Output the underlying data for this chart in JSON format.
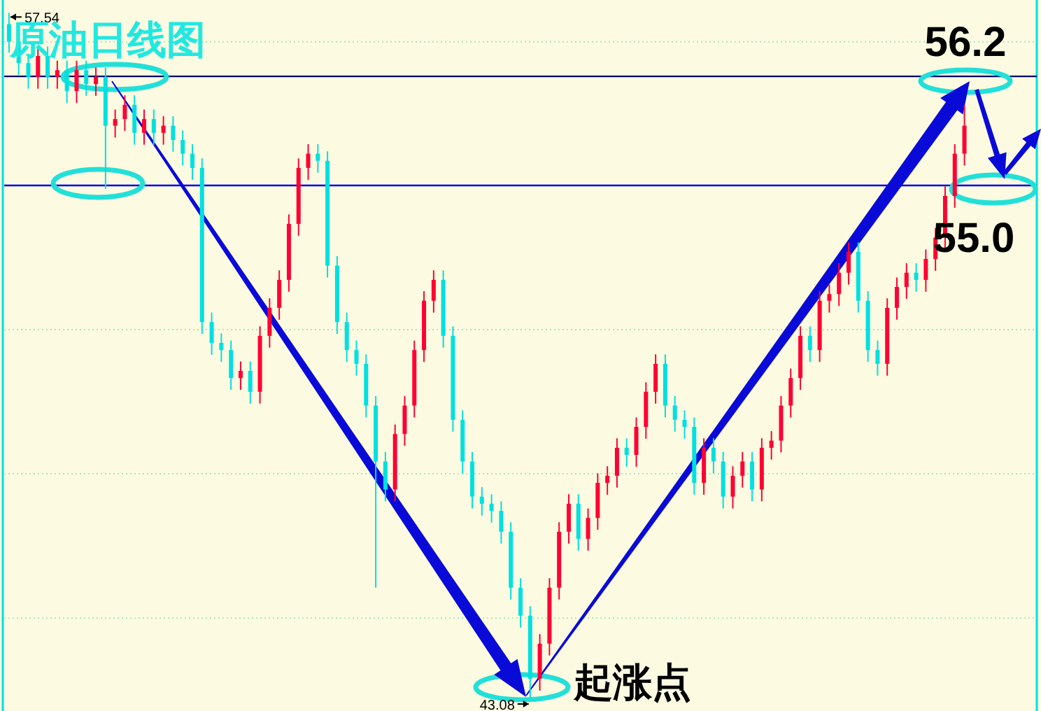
{
  "chart_data": {
    "type": "candlestick",
    "title": "原油日线图",
    "categories": [
      null,
      null,
      null,
      null,
      null,
      null,
      null,
      null,
      null,
      null,
      null,
      null,
      null,
      null,
      null,
      null,
      null,
      null,
      null,
      null,
      null,
      null,
      null,
      null,
      null,
      null,
      null,
      null,
      null,
      null,
      null,
      null,
      null,
      null,
      null,
      null,
      null,
      null,
      null,
      null,
      null,
      null,
      null,
      null,
      null,
      null,
      null,
      null,
      null,
      null,
      null,
      null,
      null,
      null,
      null,
      null,
      null,
      null,
      null,
      null,
      null,
      null,
      null,
      null,
      null,
      null,
      null,
      null,
      null,
      null,
      null,
      null,
      null,
      null,
      null,
      null,
      null,
      null,
      null,
      null,
      null,
      null,
      null,
      null,
      null,
      null,
      null,
      null,
      null,
      null,
      null,
      null,
      null,
      null,
      null,
      null,
      null,
      null,
      null,
      null
    ],
    "ohlc": [
      [
        57.3,
        57.54,
        56.7,
        56.93
      ],
      [
        56.93,
        57.13,
        56.23,
        56.48
      ],
      [
        56.48,
        56.68,
        55.94,
        56.19
      ],
      [
        56.19,
        56.83,
        55.94,
        56.63
      ],
      [
        56.63,
        56.83,
        55.94,
        56.19
      ],
      [
        56.19,
        56.53,
        55.94,
        56.33
      ],
      [
        56.33,
        56.53,
        55.64,
        55.89
      ],
      [
        55.89,
        56.53,
        55.64,
        56.33
      ],
      [
        56.33,
        56.53,
        55.79,
        56.04
      ],
      [
        56.04,
        56.39,
        55.79,
        56.19
      ],
      [
        56.19,
        56.39,
        53.83,
        55.16
      ],
      [
        55.16,
        55.5,
        54.91,
        55.3
      ],
      [
        55.3,
        55.8,
        55.05,
        55.6
      ],
      [
        55.6,
        55.8,
        54.76,
        55.01
      ],
      [
        55.01,
        55.5,
        54.76,
        55.3
      ],
      [
        55.3,
        55.5,
        54.76,
        55.01
      ],
      [
        55.01,
        55.36,
        54.76,
        55.16
      ],
      [
        55.16,
        55.36,
        54.61,
        54.86
      ],
      [
        54.86,
        55.06,
        54.32,
        54.57
      ],
      [
        54.57,
        54.77,
        54.02,
        54.27
      ],
      [
        54.27,
        54.47,
        50.77,
        51.02
      ],
      [
        51.02,
        51.22,
        50.33,
        50.58
      ],
      [
        50.58,
        50.78,
        50.18,
        50.43
      ],
      [
        50.43,
        50.63,
        49.59,
        49.84
      ],
      [
        49.84,
        50.19,
        49.59,
        49.99
      ],
      [
        49.99,
        50.19,
        49.3,
        49.55
      ],
      [
        49.55,
        50.93,
        49.3,
        50.73
      ],
      [
        50.73,
        51.52,
        50.48,
        51.32
      ],
      [
        51.32,
        52.11,
        51.07,
        51.91
      ],
      [
        51.91,
        53.29,
        51.66,
        53.09
      ],
      [
        53.09,
        54.47,
        52.84,
        54.27
      ],
      [
        54.27,
        54.77,
        54.02,
        54.57
      ],
      [
        54.57,
        54.77,
        54.17,
        54.42
      ],
      [
        54.42,
        54.62,
        51.96,
        52.21
      ],
      [
        52.21,
        52.41,
        50.77,
        51.02
      ],
      [
        51.02,
        51.22,
        50.18,
        50.43
      ],
      [
        50.43,
        50.63,
        49.89,
        50.14
      ],
      [
        50.14,
        50.34,
        49.01,
        49.26
      ],
      [
        49.26,
        49.46,
        45.42,
        48.08
      ],
      [
        48.08,
        48.28,
        47.24,
        47.49
      ],
      [
        47.49,
        48.86,
        47.24,
        48.66
      ],
      [
        48.66,
        49.46,
        48.41,
        49.26
      ],
      [
        49.26,
        50.63,
        49.01,
        50.43
      ],
      [
        50.43,
        51.67,
        50.18,
        51.47
      ],
      [
        51.47,
        52.11,
        51.22,
        51.91
      ],
      [
        51.91,
        52.11,
        50.48,
        50.73
      ],
      [
        50.73,
        50.93,
        48.71,
        48.96
      ],
      [
        48.96,
        49.16,
        47.83,
        48.08
      ],
      [
        48.08,
        48.28,
        47.09,
        47.34
      ],
      [
        47.34,
        47.54,
        46.94,
        47.19
      ],
      [
        47.19,
        47.39,
        46.79,
        47.04
      ],
      [
        47.04,
        47.24,
        46.35,
        46.6
      ],
      [
        46.6,
        46.8,
        45.17,
        45.42
      ],
      [
        45.42,
        45.62,
        44.58,
        44.83
      ],
      [
        44.83,
        45.03,
        43.08,
        43.5
      ],
      [
        43.5,
        44.44,
        43.25,
        44.24
      ],
      [
        44.24,
        45.62,
        43.99,
        45.42
      ],
      [
        45.42,
        46.8,
        45.17,
        46.6
      ],
      [
        46.6,
        47.39,
        46.35,
        47.19
      ],
      [
        47.19,
        47.39,
        46.2,
        46.45
      ],
      [
        46.45,
        47.09,
        46.2,
        46.89
      ],
      [
        46.89,
        47.83,
        46.64,
        47.63
      ],
      [
        47.63,
        47.98,
        47.38,
        47.78
      ],
      [
        47.78,
        48.57,
        47.53,
        48.37
      ],
      [
        48.37,
        48.57,
        47.97,
        48.22
      ],
      [
        48.22,
        49.01,
        47.97,
        48.81
      ],
      [
        48.81,
        49.75,
        48.56,
        49.55
      ],
      [
        49.55,
        50.34,
        49.3,
        50.14
      ],
      [
        50.14,
        50.34,
        49.01,
        49.26
      ],
      [
        49.26,
        49.46,
        48.71,
        48.96
      ],
      [
        48.96,
        49.16,
        48.56,
        48.81
      ],
      [
        48.81,
        49.01,
        47.38,
        47.63
      ],
      [
        47.63,
        48.57,
        47.38,
        48.37
      ],
      [
        48.37,
        48.57,
        47.83,
        48.08
      ],
      [
        48.08,
        48.28,
        47.09,
        47.34
      ],
      [
        47.34,
        47.98,
        47.09,
        47.78
      ],
      [
        47.78,
        48.28,
        47.53,
        48.08
      ],
      [
        48.08,
        48.28,
        47.24,
        47.49
      ],
      [
        47.49,
        48.57,
        47.24,
        48.37
      ],
      [
        48.37,
        48.72,
        48.12,
        48.52
      ],
      [
        48.52,
        49.46,
        48.27,
        49.26
      ],
      [
        49.26,
        50.04,
        49.01,
        49.84
      ],
      [
        49.84,
        50.93,
        49.59,
        50.73
      ],
      [
        50.73,
        50.93,
        50.18,
        50.43
      ],
      [
        50.43,
        51.67,
        50.18,
        51.47
      ],
      [
        51.47,
        51.81,
        51.22,
        51.61
      ],
      [
        51.61,
        52.26,
        51.36,
        52.06
      ],
      [
        52.06,
        52.7,
        51.81,
        52.5
      ],
      [
        52.5,
        52.7,
        51.22,
        51.47
      ],
      [
        51.47,
        51.67,
        50.18,
        50.43
      ],
      [
        50.43,
        50.63,
        49.89,
        50.14
      ],
      [
        50.14,
        51.52,
        49.89,
        51.32
      ],
      [
        51.32,
        51.96,
        51.07,
        51.76
      ],
      [
        51.76,
        52.26,
        51.51,
        52.06
      ],
      [
        52.06,
        52.26,
        51.66,
        51.91
      ],
      [
        51.91,
        52.55,
        51.66,
        52.35
      ],
      [
        52.35,
        53.0,
        52.1,
        52.8
      ],
      [
        52.8,
        53.88,
        52.55,
        53.68
      ],
      [
        53.68,
        54.77,
        53.43,
        54.57
      ],
      [
        54.57,
        55.6,
        54.32,
        55.16
      ]
    ],
    "colors": [
      "#00e0e0",
      "#00e0e0",
      "#00e0e0",
      "#ff0033",
      "#00e0e0",
      "#ff0033",
      "#00e0e0",
      "#ff0033",
      "#00e0e0",
      "#ff0033",
      "#00e0e0",
      "#ff0033",
      "#ff0033",
      "#00e0e0",
      "#ff0033",
      "#00e0e0",
      "#ff0033",
      "#00e0e0",
      "#00e0e0",
      "#00e0e0",
      "#00e0e0",
      "#00e0e0",
      "#00e0e0",
      "#00e0e0",
      "#ff0033",
      "#00e0e0",
      "#ff0033",
      "#ff0033",
      "#ff0033",
      "#ff0033",
      "#ff0033",
      "#ff0033",
      "#00e0e0",
      "#00e0e0",
      "#00e0e0",
      "#00e0e0",
      "#00e0e0",
      "#00e0e0",
      "#00e0e0",
      "#00e0e0",
      "#ff0033",
      "#ff0033",
      "#ff0033",
      "#ff0033",
      "#ff0033",
      "#00e0e0",
      "#00e0e0",
      "#00e0e0",
      "#00e0e0",
      "#00e0e0",
      "#00e0e0",
      "#00e0e0",
      "#00e0e0",
      "#00e0e0",
      "#00e0e0",
      "#ff0033",
      "#ff0033",
      "#ff0033",
      "#ff0033",
      "#00e0e0",
      "#ff0033",
      "#ff0033",
      "#ff0033",
      "#ff0033",
      "#00e0e0",
      "#ff0033",
      "#ff0033",
      "#ff0033",
      "#00e0e0",
      "#00e0e0",
      "#00e0e0",
      "#00e0e0",
      "#ff0033",
      "#00e0e0",
      "#00e0e0",
      "#ff0033",
      "#ff0033",
      "#00e0e0",
      "#ff0033",
      "#ff0033",
      "#ff0033",
      "#ff0033",
      "#ff0033",
      "#00e0e0",
      "#ff0033",
      "#ff0033",
      "#ff0033",
      "#ff0033",
      "#00e0e0",
      "#00e0e0",
      "#00e0e0",
      "#ff0033",
      "#ff0033",
      "#ff0033",
      "#00e0e0",
      "#ff0033",
      "#ff0033",
      "#ff0033",
      "#ff0033",
      "#ff0033"
    ],
    "ylim": [
      42.82,
      57.81
    ],
    "yticks": [
      {
        "value": 56.93,
        "label": null
      },
      {
        "value": 53.9,
        "label": null
      },
      {
        "value": 50.86,
        "label": null
      },
      {
        "value": 47.82,
        "label": null
      },
      {
        "value": 44.78,
        "label": null
      }
    ],
    "grid": "y",
    "ref_lines": [
      {
        "axis": "y",
        "value": 56.2,
        "color": "#000066"
      },
      {
        "axis": "y",
        "value": 53.9,
        "color": "#0000ee"
      }
    ],
    "annotations": [
      "57.54",
      "43.08",
      "56.2",
      "55.0",
      "起涨点"
    ]
  }
}
